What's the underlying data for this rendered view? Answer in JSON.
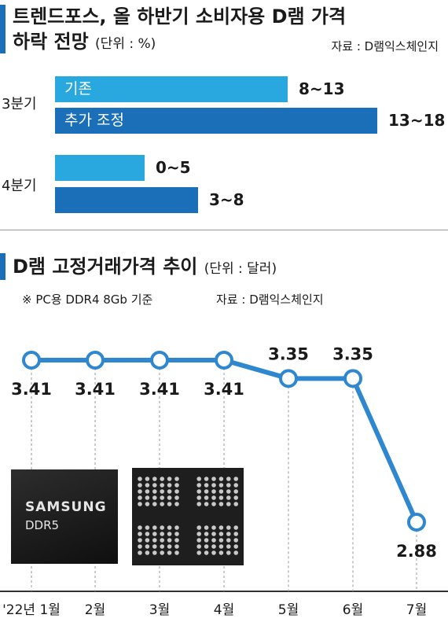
{
  "colors": {
    "light": "#29a8e0",
    "dark": "#1a6fb8",
    "line": "#2f87d0"
  },
  "top_chart": {
    "title": "트렌드포스, 올 하반기 소비자용 D램 가격",
    "title_line2": "하락 전망",
    "unit": "(단위 : %)",
    "source": "자료 : D램익스체인지"
  },
  "bottom_chart": {
    "title": "D램 고정거래가격 추이",
    "unit": "(단위 : 달러)",
    "note": "※ PC용 DDR4 8Gb 기준",
    "source": "자료 : D램익스체인지"
  },
  "chip_text": {
    "brand": "SAMSUNG",
    "model": "DDR5"
  },
  "chart_data": [
    {
      "type": "bar",
      "orientation": "horizontal",
      "groups": [
        {
          "label": "3분기",
          "bars": [
            {
              "name": "기존",
              "low": 8,
              "high": 13,
              "value_label": "8~13",
              "color": "light"
            },
            {
              "name": "추가 조정",
              "low": 13,
              "high": 18,
              "value_label": "13~18",
              "color": "dark"
            }
          ]
        },
        {
          "label": "4분기",
          "bars": [
            {
              "name": "",
              "low": 0,
              "high": 5,
              "value_label": "0~5",
              "color": "light"
            },
            {
              "name": "",
              "low": 3,
              "high": 8,
              "value_label": "3~8",
              "color": "dark"
            }
          ]
        }
      ],
      "xlim": [
        0,
        18
      ]
    },
    {
      "type": "line",
      "categories": [
        "'22년 1월",
        "2월",
        "3월",
        "4월",
        "5월",
        "6월",
        "7월"
      ],
      "values": [
        3.41,
        3.41,
        3.41,
        3.41,
        3.35,
        3.35,
        2.88
      ],
      "value_labels": [
        "3.41",
        "3.41",
        "3.41",
        "3.41",
        "3.35",
        "3.35",
        "2.88"
      ],
      "ylim": [
        2.85,
        3.42
      ]
    }
  ]
}
